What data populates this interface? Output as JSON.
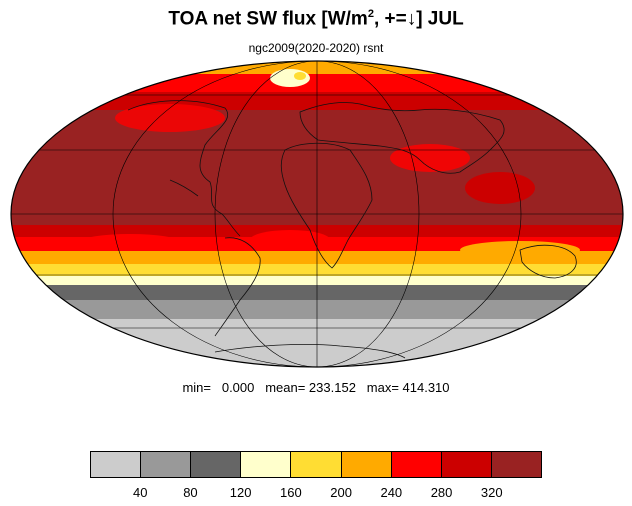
{
  "title": {
    "main_prefix": "TOA net SW flux [W/m",
    "superscript": "2",
    "main_suffix": ", +=",
    "arrow": "↓",
    "main_end": "]  JUL"
  },
  "subtitle": "ngc2009(2020-2020)   rsnt",
  "stats": {
    "text": "min=   0.000   mean= 233.152   max= 414.310"
  },
  "colorbar": {
    "colors": [
      "#cccccc",
      "#999999",
      "#666666",
      "#ffffcc",
      "#ffdd33",
      "#ffaa00",
      "#ff0000",
      "#cc0000",
      "#992222"
    ],
    "labels": [
      "40",
      "80",
      "120",
      "160",
      "200",
      "240",
      "280",
      "320"
    ]
  }
}
